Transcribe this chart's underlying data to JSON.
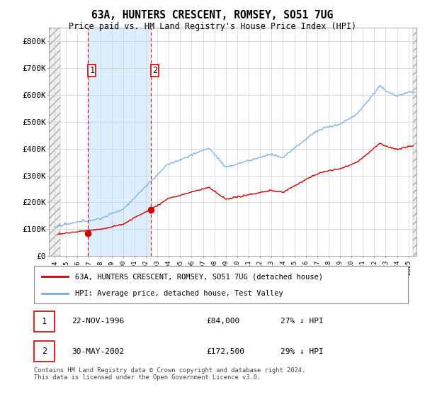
{
  "title": "63A, HUNTERS CRESCENT, ROMSEY, SO51 7UG",
  "subtitle": "Price paid vs. HM Land Registry's House Price Index (HPI)",
  "ylabel_ticks": [
    "£0",
    "£100K",
    "£200K",
    "£300K",
    "£400K",
    "£500K",
    "£600K",
    "£700K",
    "£800K"
  ],
  "ytick_values": [
    0,
    100000,
    200000,
    300000,
    400000,
    500000,
    600000,
    700000,
    800000
  ],
  "ylim": [
    0,
    850000
  ],
  "xlim_start": 1993.5,
  "xlim_end": 2025.7,
  "legend_line1": "63A, HUNTERS CRESCENT, ROMSEY, SO51 7UG (detached house)",
  "legend_line2": "HPI: Average price, detached house, Test Valley",
  "purchase1_date": 1996.9,
  "purchase1_label": "1",
  "purchase1_price": 84000,
  "purchase2_date": 2002.42,
  "purchase2_label": "2",
  "purchase2_price": 172500,
  "table_row1": [
    "1",
    "22-NOV-1996",
    "£84,000",
    "27% ↓ HPI"
  ],
  "table_row2": [
    "2",
    "30-MAY-2002",
    "£172,500",
    "29% ↓ HPI"
  ],
  "footnote": "Contains HM Land Registry data © Crown copyright and database right 2024.\nThis data is licensed under the Open Government Licence v3.0.",
  "hpi_color": "#7aaddc",
  "price_color": "#cc0000",
  "vline_color": "#cc0000",
  "shade_color": "#ddeeff",
  "background_color": "#ffffff"
}
